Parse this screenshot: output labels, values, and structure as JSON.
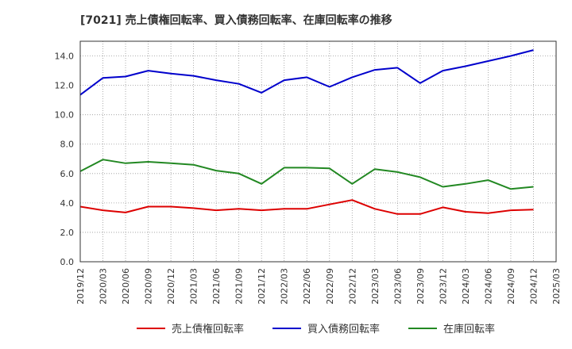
{
  "chart_data": {
    "type": "line",
    "title": "[7021]  売上債権回転率、買入債務回転率、在庫回転率の推移",
    "xlabel": "",
    "ylabel": "",
    "ylim": [
      0,
      15
    ],
    "yticks": [
      0,
      2,
      4,
      6,
      8,
      10,
      12,
      14
    ],
    "ytick_labels": [
      "0.0",
      "2.0",
      "4.0",
      "6.0",
      "8.0",
      "10.0",
      "12.0",
      "14.0"
    ],
    "grid": true,
    "legend_position": "bottom",
    "categories": [
      "2019/12",
      "2020/03",
      "2020/06",
      "2020/09",
      "2020/12",
      "2021/03",
      "2021/06",
      "2021/09",
      "2021/12",
      "2022/03",
      "2022/06",
      "2022/09",
      "2022/12",
      "2023/03",
      "2023/06",
      "2023/09",
      "2023/12",
      "2024/03",
      "2024/06",
      "2024/09",
      "2024/12",
      "2025/03"
    ],
    "series": [
      {
        "name": "売上債権回転率",
        "color": "#dd0000",
        "values": [
          3.75,
          3.5,
          3.35,
          3.75,
          3.75,
          3.65,
          3.5,
          3.6,
          3.5,
          3.6,
          3.6,
          3.9,
          4.2,
          3.6,
          3.25,
          3.25,
          3.7,
          3.4,
          3.3,
          3.5,
          3.55,
          null
        ]
      },
      {
        "name": "買入債務回転率",
        "color": "#0000cc",
        "values": [
          11.35,
          12.5,
          12.6,
          13.0,
          12.8,
          12.65,
          12.35,
          12.1,
          11.5,
          12.35,
          12.55,
          11.9,
          12.55,
          13.05,
          13.2,
          12.15,
          13.0,
          13.3,
          13.65,
          14.0,
          14.4,
          null
        ]
      },
      {
        "name": "在庫回転率",
        "color": "#228822",
        "values": [
          6.15,
          6.95,
          6.7,
          6.8,
          6.7,
          6.6,
          6.2,
          6.0,
          5.3,
          6.4,
          6.4,
          6.35,
          5.3,
          6.3,
          6.1,
          5.75,
          5.1,
          5.3,
          5.55,
          4.95,
          5.1,
          null
        ]
      }
    ]
  }
}
